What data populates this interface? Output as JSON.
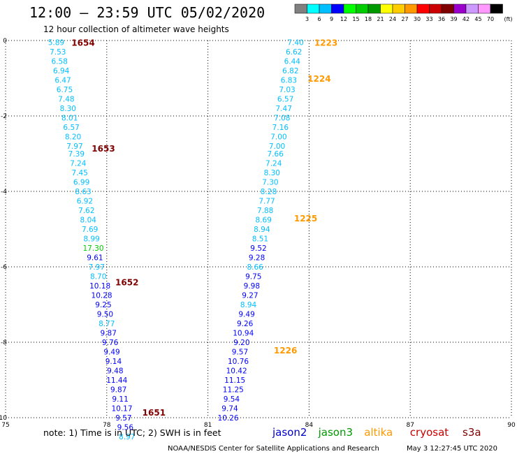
{
  "header": {
    "title": "12:00 – 23:59 UTC 05/02/2020",
    "subtitle": "12 hour collection of altimeter wave heights"
  },
  "colorbar": {
    "unit": "(ft)",
    "labels": [
      "3",
      "6",
      "9",
      "12",
      "15",
      "18",
      "21",
      "24",
      "27",
      "30",
      "33",
      "36",
      "39",
      "42",
      "45",
      "70"
    ],
    "colors": [
      "#808080",
      "#00ffff",
      "#00bfff",
      "#0000ff",
      "#00ff00",
      "#00cc00",
      "#009900",
      "#ffff00",
      "#ffcc00",
      "#ff9900",
      "#ff0000",
      "#cc0000",
      "#800000",
      "#9900cc",
      "#cc99ff",
      "#ff99ff",
      "#000000"
    ]
  },
  "note": "note: 1) Time is in UTC; 2) SWH is in feet",
  "legend": [
    {
      "name": "jason2",
      "color": "#0000cc"
    },
    {
      "name": "jason3",
      "color": "#009900"
    },
    {
      "name": "altika",
      "color": "#ff9900"
    },
    {
      "name": "cryosat",
      "color": "#cc0000"
    },
    {
      "name": "s3a",
      "color": "#800000"
    }
  ],
  "footer": {
    "source": "NOAA/NESDIS Center for Satellite Applications and Research",
    "timestamp": "May  3 12:27:45 UTC 2020"
  },
  "chart_data": {
    "type": "scatter",
    "xlim": [
      75,
      90
    ],
    "ylim": [
      -10,
      0
    ],
    "xticks": [
      75,
      78,
      81,
      84,
      87,
      90
    ],
    "yticks": [
      0,
      -2,
      -4,
      -6,
      -8,
      -10
    ],
    "grid": true,
    "series": [
      {
        "name": "s3a",
        "color": "#800000",
        "points": [
          {
            "x": 76.5,
            "y": -0.05,
            "v": "5.89",
            "c": "#00bfff"
          },
          {
            "x": 76.55,
            "y": -0.3,
            "v": "7.53",
            "c": "#00bfff"
          },
          {
            "x": 76.6,
            "y": -0.55,
            "v": "6.58",
            "c": "#00bfff"
          },
          {
            "x": 76.65,
            "y": -0.8,
            "v": "6.94",
            "c": "#00bfff"
          },
          {
            "x": 76.7,
            "y": -1.05,
            "v": "6.47",
            "c": "#00bfff"
          },
          {
            "x": 76.75,
            "y": -1.3,
            "v": "6.75",
            "c": "#00bfff"
          },
          {
            "x": 76.8,
            "y": -1.55,
            "v": "7.48",
            "c": "#00bfff"
          },
          {
            "x": 76.85,
            "y": -1.8,
            "v": "8.30",
            "c": "#00bfff"
          },
          {
            "x": 76.9,
            "y": -2.05,
            "v": "8.01",
            "c": "#00bfff"
          },
          {
            "x": 76.95,
            "y": -2.3,
            "v": "6.57",
            "c": "#00bfff"
          },
          {
            "x": 77.0,
            "y": -2.55,
            "v": "8.20",
            "c": "#00bfff"
          },
          {
            "x": 77.05,
            "y": -2.8,
            "v": "7.97",
            "c": "#00bfff"
          },
          {
            "x": 77.1,
            "y": -3.0,
            "v": "7.39",
            "c": "#00bfff"
          },
          {
            "x": 77.15,
            "y": -3.25,
            "v": "7.24",
            "c": "#00bfff"
          },
          {
            "x": 77.2,
            "y": -3.5,
            "v": "7.45",
            "c": "#00bfff"
          },
          {
            "x": 77.25,
            "y": -3.75,
            "v": "6.99",
            "c": "#00bfff"
          },
          {
            "x": 77.3,
            "y": -4.0,
            "v": "8.63",
            "c": "#00bfff"
          },
          {
            "x": 77.35,
            "y": -4.25,
            "v": "6.92",
            "c": "#00bfff"
          },
          {
            "x": 77.4,
            "y": -4.5,
            "v": "7.62",
            "c": "#00bfff"
          },
          {
            "x": 77.45,
            "y": -4.75,
            "v": "8.04",
            "c": "#00bfff"
          },
          {
            "x": 77.5,
            "y": -5.0,
            "v": "7.69",
            "c": "#00bfff"
          },
          {
            "x": 77.55,
            "y": -5.25,
            "v": "8.99",
            "c": "#00bfff"
          },
          {
            "x": 77.6,
            "y": -5.5,
            "v": "17.30",
            "c": "#00cc00"
          },
          {
            "x": 77.65,
            "y": -5.75,
            "v": "9.61",
            "c": "#0000ff"
          },
          {
            "x": 77.7,
            "y": -6.0,
            "v": "7.97",
            "c": "#00bfff"
          },
          {
            "x": 77.75,
            "y": -6.25,
            "v": "8.70",
            "c": "#00bfff"
          },
          {
            "x": 77.8,
            "y": -6.5,
            "v": "10.18",
            "c": "#0000ff"
          },
          {
            "x": 77.85,
            "y": -6.75,
            "v": "10.28",
            "c": "#0000ff"
          },
          {
            "x": 77.9,
            "y": -7.0,
            "v": "9.25",
            "c": "#0000ff"
          },
          {
            "x": 77.95,
            "y": -7.25,
            "v": "9.50",
            "c": "#0000ff"
          },
          {
            "x": 78.0,
            "y": -7.5,
            "v": "8.77",
            "c": "#00bfff"
          },
          {
            "x": 78.05,
            "y": -7.75,
            "v": "9.87",
            "c": "#0000ff"
          },
          {
            "x": 78.1,
            "y": -8.0,
            "v": "9.76",
            "c": "#0000ff"
          },
          {
            "x": 78.15,
            "y": -8.25,
            "v": "9.49",
            "c": "#0000ff"
          },
          {
            "x": 78.2,
            "y": -8.5,
            "v": "9.14",
            "c": "#0000ff"
          },
          {
            "x": 78.25,
            "y": -8.75,
            "v": "9.48",
            "c": "#0000ff"
          },
          {
            "x": 78.3,
            "y": -9.0,
            "v": "11.44",
            "c": "#0000ff"
          },
          {
            "x": 78.35,
            "y": -9.25,
            "v": "9.87",
            "c": "#0000ff"
          },
          {
            "x": 78.4,
            "y": -9.5,
            "v": "9.11",
            "c": "#0000ff"
          },
          {
            "x": 78.45,
            "y": -9.75,
            "v": "10.17",
            "c": "#0000ff"
          },
          {
            "x": 78.5,
            "y": -10.0,
            "v": "9.57",
            "c": "#0000ff"
          },
          {
            "x": 78.55,
            "y": -10.25,
            "v": "9.56",
            "c": "#0000ff"
          },
          {
            "x": 78.6,
            "y": -10.5,
            "v": "8.97",
            "c": "#00bfff"
          }
        ]
      },
      {
        "name": "altika",
        "color": "#ff9900",
        "points": [
          {
            "x": 83.6,
            "y": -0.05,
            "v": "7.40",
            "c": "#00bfff"
          },
          {
            "x": 83.55,
            "y": -0.3,
            "v": "6.62",
            "c": "#00bfff"
          },
          {
            "x": 83.5,
            "y": -0.55,
            "v": "6.44",
            "c": "#00bfff"
          },
          {
            "x": 83.45,
            "y": -0.8,
            "v": "6.82",
            "c": "#00bfff"
          },
          {
            "x": 83.4,
            "y": -1.05,
            "v": "6.83",
            "c": "#00bfff"
          },
          {
            "x": 83.35,
            "y": -1.3,
            "v": "7.03",
            "c": "#00bfff"
          },
          {
            "x": 83.3,
            "y": -1.55,
            "v": "6.57",
            "c": "#00bfff"
          },
          {
            "x": 83.25,
            "y": -1.8,
            "v": "7.47",
            "c": "#00bfff"
          },
          {
            "x": 83.2,
            "y": -2.05,
            "v": "7.08",
            "c": "#00bfff"
          },
          {
            "x": 83.15,
            "y": -2.3,
            "v": "7.16",
            "c": "#00bfff"
          },
          {
            "x": 83.1,
            "y": -2.55,
            "v": "7.00",
            "c": "#00bfff"
          },
          {
            "x": 83.05,
            "y": -2.8,
            "v": "7.00",
            "c": "#00bfff"
          },
          {
            "x": 83.0,
            "y": -3.0,
            "v": "7.66",
            "c": "#00bfff"
          },
          {
            "x": 82.95,
            "y": -3.25,
            "v": "7.24",
            "c": "#00bfff"
          },
          {
            "x": 82.9,
            "y": -3.5,
            "v": "8.30",
            "c": "#00bfff"
          },
          {
            "x": 82.85,
            "y": -3.75,
            "v": "7.30",
            "c": "#00bfff"
          },
          {
            "x": 82.8,
            "y": -4.0,
            "v": "8.28",
            "c": "#00bfff"
          },
          {
            "x": 82.75,
            "y": -4.25,
            "v": "7.77",
            "c": "#00bfff"
          },
          {
            "x": 82.7,
            "y": -4.5,
            "v": "7.88",
            "c": "#00bfff"
          },
          {
            "x": 82.65,
            "y": -4.75,
            "v": "8.69",
            "c": "#00bfff"
          },
          {
            "x": 82.6,
            "y": -5.0,
            "v": "8.94",
            "c": "#00bfff"
          },
          {
            "x": 82.55,
            "y": -5.25,
            "v": "8.51",
            "c": "#00bfff"
          },
          {
            "x": 82.5,
            "y": -5.5,
            "v": "9.52",
            "c": "#0000ff"
          },
          {
            "x": 82.45,
            "y": -5.75,
            "v": "9.28",
            "c": "#0000ff"
          },
          {
            "x": 82.4,
            "y": -6.0,
            "v": "8.66",
            "c": "#00bfff"
          },
          {
            "x": 82.35,
            "y": -6.25,
            "v": "9.75",
            "c": "#0000ff"
          },
          {
            "x": 82.3,
            "y": -6.5,
            "v": "9.98",
            "c": "#0000ff"
          },
          {
            "x": 82.25,
            "y": -6.75,
            "v": "9.27",
            "c": "#0000ff"
          },
          {
            "x": 82.2,
            "y": -7.0,
            "v": "8.94",
            "c": "#00bfff"
          },
          {
            "x": 82.15,
            "y": -7.25,
            "v": "9.49",
            "c": "#0000ff"
          },
          {
            "x": 82.1,
            "y": -7.5,
            "v": "9.26",
            "c": "#0000ff"
          },
          {
            "x": 82.05,
            "y": -7.75,
            "v": "10.94",
            "c": "#0000ff"
          },
          {
            "x": 82.0,
            "y": -8.0,
            "v": "9.20",
            "c": "#0000ff"
          },
          {
            "x": 81.95,
            "y": -8.25,
            "v": "9.57",
            "c": "#0000ff"
          },
          {
            "x": 81.9,
            "y": -8.5,
            "v": "10.76",
            "c": "#0000ff"
          },
          {
            "x": 81.85,
            "y": -8.75,
            "v": "10.42",
            "c": "#0000ff"
          },
          {
            "x": 81.8,
            "y": -9.0,
            "v": "11.15",
            "c": "#0000ff"
          },
          {
            "x": 81.75,
            "y": -9.25,
            "v": "11.25",
            "c": "#0000ff"
          },
          {
            "x": 81.7,
            "y": -9.5,
            "v": "9.54",
            "c": "#0000ff"
          },
          {
            "x": 81.65,
            "y": -9.75,
            "v": "9.74",
            "c": "#0000ff"
          },
          {
            "x": 81.6,
            "y": -10.0,
            "v": "10.26",
            "c": "#0000ff"
          }
        ]
      }
    ],
    "annotations": [
      {
        "text": "1654",
        "x": 77.3,
        "y": -0.05,
        "color": "#800000"
      },
      {
        "text": "1653",
        "x": 77.9,
        "y": -2.85,
        "color": "#800000"
      },
      {
        "text": "1652",
        "x": 78.6,
        "y": -6.4,
        "color": "#800000"
      },
      {
        "text": "1651",
        "x": 79.4,
        "y": -9.85,
        "color": "#800000"
      },
      {
        "text": "1223",
        "x": 84.5,
        "y": -0.05,
        "color": "#ff9900"
      },
      {
        "text": "1224",
        "x": 84.3,
        "y": -1.0,
        "color": "#ff9900"
      },
      {
        "text": "1225",
        "x": 83.9,
        "y": -4.7,
        "color": "#ff9900"
      },
      {
        "text": "1226",
        "x": 83.3,
        "y": -8.2,
        "color": "#ff9900"
      }
    ]
  }
}
